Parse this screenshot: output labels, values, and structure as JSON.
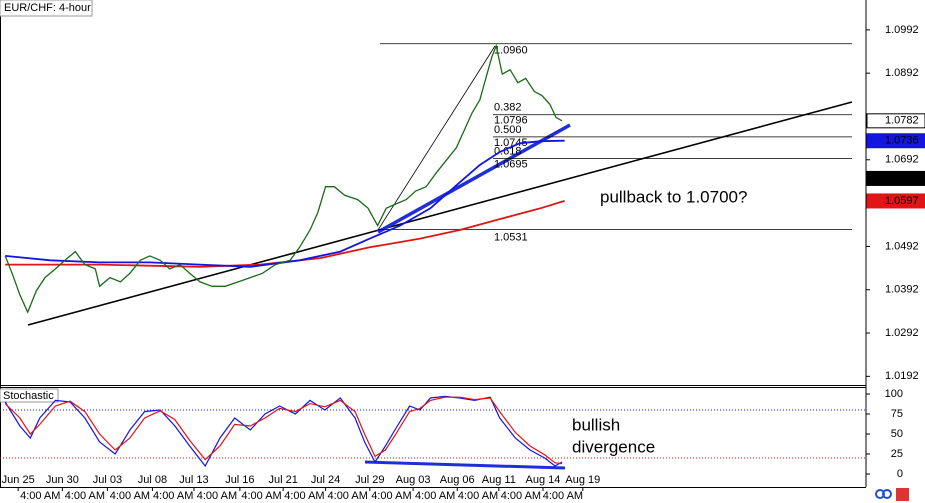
{
  "chart_data": [
    {
      "type": "line",
      "title": "EUR/CHF: 4-hour",
      "xlim": [
        0,
        100
      ],
      "ylim": [
        1.0172,
        1.1061
      ],
      "yticks": [
        1.0992,
        1.0892,
        1.0692,
        1.0492,
        1.0392,
        1.0292,
        1.0192
      ],
      "xticks": [
        {
          "value": 2.1,
          "label": "Jun 25"
        },
        {
          "value": 7.2,
          "label": "Jun 30"
        },
        {
          "value": 12.4,
          "label": "Jul 03"
        },
        {
          "value": 17.6,
          "label": "Jul 08"
        },
        {
          "value": 22.4,
          "label": "Jul 13"
        },
        {
          "value": 27.7,
          "label": "Jul 16"
        },
        {
          "value": 32.7,
          "label": "Jul 21"
        },
        {
          "value": 37.6,
          "label": "Jul 24"
        },
        {
          "value": 42.7,
          "label": "Jul 29"
        },
        {
          "value": 47.7,
          "label": "Aug 03"
        },
        {
          "value": 52.8,
          "label": "Aug 06"
        },
        {
          "value": 57.6,
          "label": "Aug 11"
        },
        {
          "value": 62.7,
          "label": "Aug 14"
        },
        {
          "value": 67.3,
          "label": "Aug 19"
        }
      ],
      "time_labels": [
        "4:00 AM",
        "4:00 AM",
        "4:00 AM",
        "4:00 AM",
        "4:00 AM",
        "4:00 AM",
        "4:00 AM",
        "4:00 AM",
        "4:00 AM",
        "4:00 AM",
        "4:00 AM",
        "4:00 AM",
        "4:00 AM"
      ],
      "series": [
        {
          "name": "EUR/CHF",
          "color": "#1a6b1a",
          "x": [
            0.6,
            1.4,
            2.3,
            3.2,
            4.2,
            5.2,
            6.4,
            7.5,
            8.7,
            9.8,
            11.0,
            11.5,
            12.7,
            13.9,
            15.0,
            16.2,
            17.3,
            18.5,
            19.6,
            20.8,
            21.9,
            23.1,
            24.5,
            26.0,
            27.5,
            28.9,
            30.3,
            31.8,
            33.5,
            34.6,
            35.8,
            36.7,
            37.6,
            38.6,
            39.8,
            41.3,
            42.5,
            43.6,
            44.6,
            45.7,
            46.9,
            48.0,
            49.2,
            50.3,
            51.5,
            52.7,
            53.6,
            54.5,
            55.4,
            56.1,
            56.8,
            57.3,
            58.0,
            58.9,
            59.8,
            60.7,
            61.7,
            62.6,
            63.5,
            64.2,
            64.9
          ],
          "values": [
            1.047,
            1.043,
            1.038,
            1.034,
            1.039,
            1.042,
            1.044,
            1.046,
            1.048,
            1.045,
            1.044,
            1.04,
            1.042,
            1.041,
            1.043,
            1.046,
            1.047,
            1.046,
            1.044,
            1.045,
            1.043,
            1.041,
            1.04,
            1.04,
            1.041,
            1.042,
            1.043,
            1.045,
            1.046,
            1.049,
            1.053,
            1.057,
            1.063,
            1.063,
            1.061,
            1.06,
            1.058,
            1.054,
            1.058,
            1.059,
            1.06,
            1.062,
            1.063,
            1.066,
            1.069,
            1.072,
            1.076,
            1.08,
            1.083,
            1.088,
            1.093,
            1.0955,
            1.089,
            1.09,
            1.087,
            1.088,
            1.085,
            1.084,
            1.082,
            1.079,
            1.0782
          ]
        },
        {
          "color": "#1515e0",
          "x": [
            0.6,
            5.8,
            11.5,
            17.3,
            23.1,
            28.9,
            34.6,
            39.3,
            42.7,
            46.2,
            49.7,
            53.1,
            55.4,
            57.7,
            60.0,
            62.4,
            65.2
          ],
          "values": [
            1.047,
            1.046,
            1.0455,
            1.0455,
            1.045,
            1.0445,
            1.046,
            1.048,
            1.051,
            1.054,
            1.058,
            1.064,
            1.068,
            1.071,
            1.073,
            1.0735,
            1.0736
          ]
        },
        {
          "color": "#e01515",
          "x": [
            0.6,
            11.5,
            23.1,
            30.0,
            37.0,
            42.7,
            48.5,
            53.1,
            57.7,
            62.4,
            65.2
          ],
          "values": [
            1.045,
            1.045,
            1.0445,
            1.045,
            1.0465,
            1.049,
            1.051,
            1.053,
            1.0555,
            1.058,
            1.0597
          ]
        }
      ],
      "axis_markers": [
        1.0782,
        1.0736,
        1.0649,
        1.0597
      ],
      "axis_marker_colors": [
        "#ffffff",
        "#1515e0",
        "#000000",
        "#e01515"
      ],
      "fib_levels": [
        {
          "price": {
            "value": 1.096,
            "label": "1.0960"
          }
        },
        {
          "ratio": "0.382",
          "price": 1.0796
        },
        {
          "ratio": "0.500",
          "price": 1.0745
        },
        {
          "ratio": "0.618",
          "price": 1.0695
        },
        {
          "price": 1.0531
        }
      ],
      "annotations": [
        "pullback to 1.0700?"
      ]
    },
    {
      "type": "line",
      "title": "Stochastic",
      "ylim": [
        -13.75,
        108.75
      ],
      "yticks": [
        100,
        75,
        50,
        25,
        0
      ],
      "levels": [
        80,
        20
      ],
      "level_colors": [
        "#1515e0",
        "#e01515"
      ],
      "x": [
        0.6,
        2.3,
        3.5,
        4.6,
        6.4,
        8.1,
        9.8,
        11.5,
        13.3,
        15.0,
        16.7,
        18.5,
        20.2,
        21.9,
        23.7,
        25.4,
        27.1,
        28.9,
        30.6,
        32.3,
        34.1,
        35.8,
        37.5,
        39.3,
        41.0,
        42.1,
        43.3,
        44.5,
        45.6,
        47.3,
        48.5,
        49.7,
        51.4,
        53.1,
        54.8,
        56.6,
        57.7,
        59.5,
        61.2,
        62.9,
        64.1,
        64.9
      ],
      "series": [
        {
          "color": "#1515e0",
          "values": [
            90,
            60,
            45,
            70,
            92,
            90,
            70,
            40,
            25,
            55,
            78,
            80,
            60,
            35,
            10,
            45,
            70,
            55,
            75,
            85,
            75,
            92,
            80,
            95,
            70,
            40,
            15,
            35,
            55,
            85,
            80,
            95,
            97,
            95,
            92,
            96,
            70,
            45,
            30,
            20,
            10,
            15
          ]
        },
        {
          "color": "#e01515",
          "values": [
            88,
            70,
            50,
            62,
            85,
            91,
            78,
            50,
            30,
            45,
            70,
            79,
            68,
            42,
            18,
            35,
            62,
            60,
            70,
            82,
            78,
            88,
            84,
            92,
            78,
            50,
            22,
            30,
            48,
            78,
            82,
            92,
            96,
            96,
            93,
            95,
            78,
            52,
            35,
            24,
            14,
            13
          ]
        }
      ],
      "annotations": [
        "bullish",
        "divergence"
      ]
    }
  ]
}
